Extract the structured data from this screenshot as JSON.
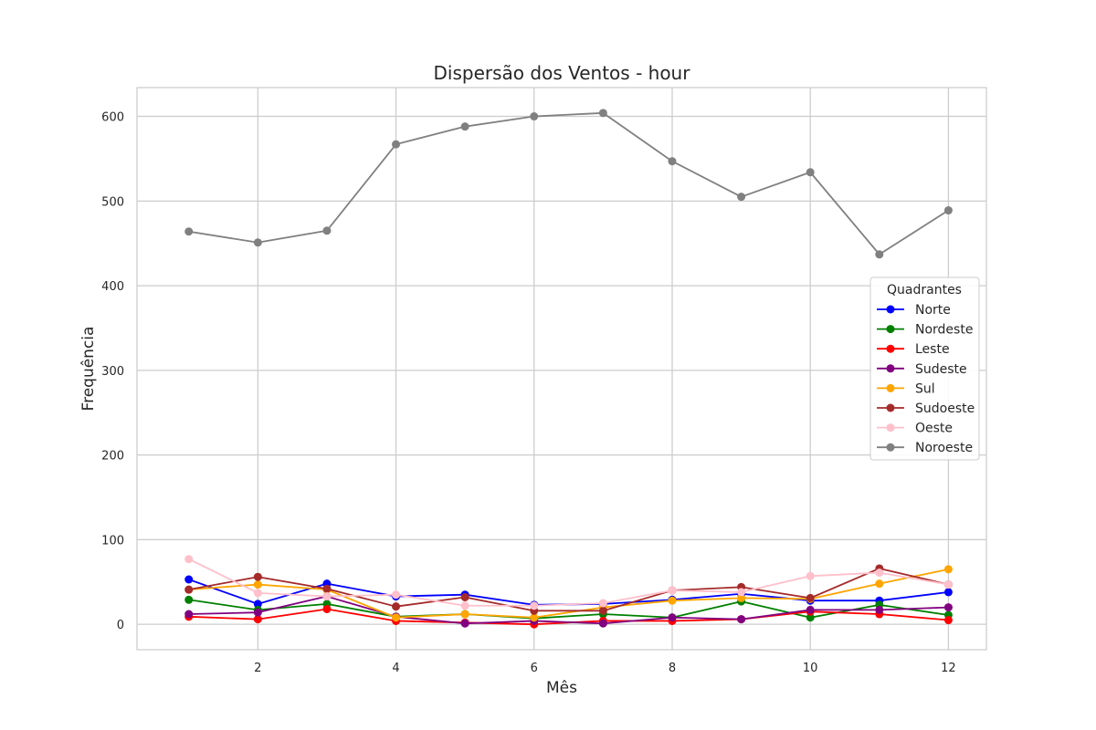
{
  "chart_data": {
    "type": "line",
    "title": "Dispersão dos Ventos - hour",
    "xlabel": "Mês",
    "ylabel": "Frequência",
    "x": [
      1,
      2,
      3,
      4,
      5,
      6,
      7,
      8,
      9,
      10,
      11,
      12
    ],
    "xticks": [
      2,
      4,
      6,
      8,
      10,
      12
    ],
    "yticks": [
      0,
      100,
      200,
      300,
      400,
      500,
      600
    ],
    "xlim": [
      0.25,
      12.55
    ],
    "ylim": [
      -30,
      634
    ],
    "grid": true,
    "legend": {
      "title": "Quadrantes",
      "position": "right"
    },
    "series": [
      {
        "name": "Norte",
        "color": "#0000ff",
        "values": [
          53,
          24,
          48,
          33,
          35,
          23,
          24,
          29,
          36,
          28,
          28,
          38
        ]
      },
      {
        "name": "Nordeste",
        "color": "#008000",
        "values": [
          29,
          17,
          24,
          9,
          12,
          7,
          12,
          8,
          27,
          8,
          23,
          11
        ]
      },
      {
        "name": "Leste",
        "color": "#ff0000",
        "values": [
          9,
          6,
          18,
          4,
          2,
          0,
          4,
          4,
          6,
          15,
          12,
          5
        ]
      },
      {
        "name": "Sudeste",
        "color": "#800080",
        "values": [
          12,
          14,
          33,
          9,
          1,
          4,
          1,
          8,
          6,
          17,
          17,
          20
        ]
      },
      {
        "name": "Sul",
        "color": "#ffa500",
        "values": [
          41,
          47,
          41,
          8,
          12,
          8,
          20,
          28,
          31,
          30,
          48,
          65
        ]
      },
      {
        "name": "Sudoeste",
        "color": "#a52a2a",
        "values": [
          41,
          56,
          42,
          21,
          32,
          16,
          16,
          40,
          44,
          31,
          66,
          47
        ]
      },
      {
        "name": "Oeste",
        "color": "#ffc0cb",
        "values": [
          77,
          37,
          33,
          35,
          22,
          22,
          25,
          40,
          38,
          57,
          61,
          47
        ]
      },
      {
        "name": "Noroeste",
        "color": "#808080",
        "values": [
          464,
          451,
          465,
          567,
          588,
          600,
          604,
          547,
          505,
          534,
          437,
          489
        ]
      }
    ]
  }
}
